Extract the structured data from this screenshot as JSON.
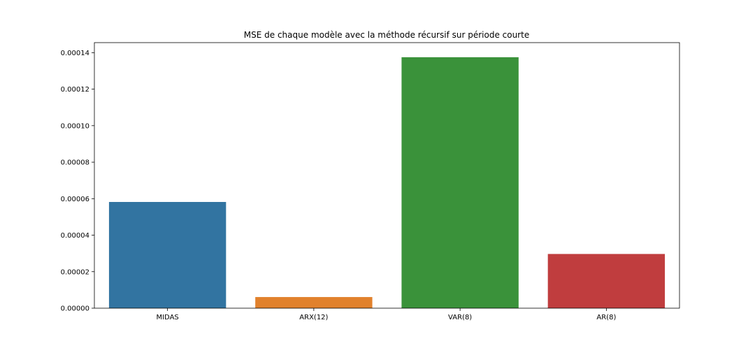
{
  "chart_data": {
    "type": "bar",
    "title": "MSE de chaque modèle avec la méthode récursif sur période courte",
    "xlabel": "",
    "ylabel": "",
    "categories": [
      "MIDAS",
      "ARX(12)",
      "VAR(8)",
      "AR(8)"
    ],
    "values": [
      5.82e-05,
      6.1e-06,
      0.0001375,
      2.97e-05
    ],
    "colors": [
      "#3274a1",
      "#e1812c",
      "#3a923a",
      "#c03d3e"
    ],
    "ylim": [
      0,
      0.0001455
    ],
    "yticks": [
      0,
      2e-05,
      4e-05,
      6e-05,
      8e-05,
      0.0001,
      0.00012,
      0.00014
    ],
    "ytick_labels": [
      "0.00000",
      "0.00002",
      "0.00004",
      "0.00006",
      "0.00008",
      "0.00010",
      "0.00012",
      "0.00014"
    ],
    "grid": false,
    "legend": "none"
  }
}
